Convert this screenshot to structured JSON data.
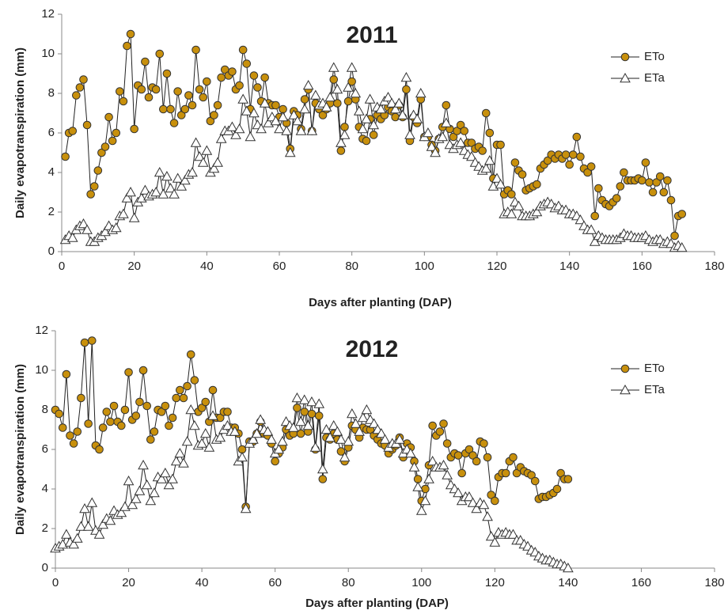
{
  "chart_data": [
    {
      "type": "line",
      "title": "2011",
      "xlabel": "Days after planting (DAP)",
      "ylabel": "Daily evapotranspiration  (mm)",
      "xlim": [
        0,
        180
      ],
      "ylim": [
        0,
        12
      ],
      "xticks": [
        0,
        20,
        40,
        60,
        80,
        100,
        120,
        140,
        160,
        180
      ],
      "yticks": [
        0,
        2,
        4,
        6,
        8,
        10,
        12
      ],
      "legend": "right",
      "x": [
        1,
        2,
        3,
        4,
        5,
        6,
        7,
        8,
        9,
        10,
        11,
        12,
        13,
        14,
        15,
        16,
        17,
        18,
        19,
        20,
        21,
        22,
        23,
        24,
        25,
        26,
        27,
        28,
        29,
        30,
        31,
        32,
        33,
        34,
        35,
        36,
        37,
        38,
        39,
        40,
        41,
        42,
        43,
        44,
        45,
        46,
        47,
        48,
        49,
        50,
        51,
        52,
        53,
        54,
        55,
        56,
        57,
        58,
        59,
        60,
        61,
        62,
        63,
        64,
        65,
        66,
        67,
        68,
        69,
        70,
        71,
        72,
        73,
        74,
        75,
        76,
        77,
        78,
        79,
        80,
        81,
        82,
        83,
        84,
        85,
        86,
        87,
        88,
        89,
        90,
        91,
        92,
        93,
        94,
        95,
        96,
        97,
        98,
        99,
        100,
        101,
        102,
        103,
        104,
        105,
        106,
        107,
        108,
        109,
        110,
        111,
        112,
        113,
        114,
        115,
        116,
        117,
        118,
        119,
        120,
        121,
        122,
        123,
        124,
        125,
        126,
        127,
        128,
        129,
        130,
        131,
        132,
        133,
        134,
        135,
        136,
        137,
        138,
        139,
        140,
        141,
        142,
        143,
        144,
        145,
        146,
        147,
        148,
        149,
        150,
        151,
        152,
        153,
        154,
        155,
        156,
        157,
        158,
        159,
        160,
        161,
        162,
        163,
        164,
        165,
        166,
        167,
        168,
        169,
        170,
        171
      ],
      "series": [
        {
          "name": "ETo",
          "color": "#c8900c",
          "marker": "circle",
          "values": [
            4.8,
            6.0,
            6.1,
            7.9,
            8.3,
            8.7,
            6.4,
            2.9,
            3.3,
            4.1,
            5.0,
            5.3,
            6.8,
            5.6,
            6.0,
            8.1,
            7.6,
            10.4,
            11.0,
            6.2,
            8.4,
            8.2,
            9.6,
            7.8,
            8.3,
            8.2,
            10.0,
            7.2,
            9.0,
            7.2,
            6.5,
            8.1,
            6.9,
            7.2,
            7.9,
            7.4,
            10.2,
            8.2,
            7.8,
            8.6,
            6.6,
            6.9,
            7.4,
            8.8,
            9.2,
            8.9,
            9.1,
            8.2,
            8.4,
            10.2,
            9.5,
            7.2,
            8.9,
            8.3,
            7.6,
            8.8,
            7.5,
            7.4,
            7.4,
            6.8,
            7.2,
            6.5,
            5.2,
            7.1,
            6.9,
            6.2,
            7.7,
            8.2,
            6.1,
            7.5,
            7.2,
            6.9,
            7.2,
            7.5,
            8.7,
            7.5,
            5.1,
            6.3,
            7.6,
            8.6,
            7.7,
            6.3,
            5.7,
            5.6,
            6.7,
            5.9,
            6.9,
            6.7,
            6.9,
            7.3,
            7.1,
            6.8,
            7.4,
            6.8,
            8.2,
            5.6,
            6.8,
            6.5,
            7.7,
            5.8,
            5.8,
            5.4,
            5.1,
            5.7,
            6.3,
            7.4,
            6.2,
            5.8,
            6.1,
            6.4,
            6.1,
            5.5,
            5.5,
            5.2,
            5.3,
            5.1,
            7.0,
            6.0,
            3.7,
            5.4,
            5.4,
            2.9,
            3.1,
            2.9,
            4.5,
            4.1,
            3.9,
            3.1,
            3.2,
            3.3,
            3.4,
            4.2,
            4.4,
            4.6,
            4.9,
            4.7,
            4.9,
            4.7,
            4.9,
            4.4,
            4.9,
            5.8,
            4.8,
            4.2,
            4.0,
            4.3,
            1.8,
            3.2,
            2.6,
            2.4,
            2.3,
            2.5,
            2.7,
            3.3,
            4.0,
            3.6,
            3.6,
            3.6,
            3.7,
            3.6,
            4.5,
            3.5,
            3.0,
            3.5,
            3.8,
            3.0,
            3.6,
            2.6,
            0.8,
            1.8,
            1.9
          ]
        },
        {
          "name": "ETa",
          "color": "#ffffff",
          "marker": "triangle",
          "values": [
            0.6,
            0.8,
            0.7,
            1.1,
            1.3,
            1.4,
            1.1,
            0.5,
            0.5,
            0.7,
            0.8,
            1.0,
            1.3,
            1.1,
            1.2,
            1.8,
            1.9,
            2.7,
            3.0,
            1.7,
            2.5,
            2.7,
            3.1,
            2.8,
            2.9,
            3.0,
            4.0,
            2.9,
            3.8,
            3.2,
            2.9,
            3.7,
            3.3,
            3.6,
            3.9,
            4.0,
            5.5,
            4.8,
            4.5,
            5.1,
            4.0,
            4.2,
            4.5,
            5.7,
            6.1,
            6.1,
            6.3,
            5.9,
            6.2,
            7.7,
            7.1,
            5.8,
            7.0,
            6.4,
            6.2,
            7.5,
            6.5,
            6.8,
            6.6,
            6.2,
            6.8,
            6.1,
            5.0,
            6.9,
            6.6,
            6.1,
            7.2,
            8.4,
            6.1,
            7.9,
            7.4,
            7.5,
            7.3,
            7.8,
            9.3,
            8.2,
            5.5,
            5.9,
            8.3,
            9.3,
            8.0,
            7.1,
            6.2,
            6.7,
            7.7,
            6.4,
            7.3,
            7.2,
            7.6,
            7.8,
            7.5,
            7.2,
            7.5,
            6.9,
            8.8,
            5.9,
            6.9,
            6.7,
            8.0,
            5.8,
            6.0,
            5.3,
            5.0,
            5.7,
            5.8,
            6.5,
            5.4,
            5.2,
            5.4,
            5.5,
            5.1,
            4.9,
            4.8,
            4.5,
            4.3,
            4.1,
            4.2,
            4.6,
            3.3,
            3.7,
            3.4,
            1.9,
            2.0,
            1.9,
            2.5,
            2.3,
            1.8,
            1.8,
            1.8,
            1.9,
            2.0,
            2.3,
            2.4,
            2.5,
            2.4,
            2.2,
            2.3,
            2.1,
            2.1,
            1.9,
            1.9,
            1.8,
            1.6,
            1.3,
            1.1,
            1.1,
            0.5,
            0.8,
            0.7,
            0.6,
            0.6,
            0.6,
            0.6,
            0.7,
            0.9,
            0.8,
            0.8,
            0.7,
            0.7,
            0.7,
            0.8,
            0.6,
            0.5,
            0.6,
            0.6,
            0.4,
            0.5,
            0.4,
            0.2,
            0.3,
            0.2
          ]
        }
      ]
    },
    {
      "type": "line",
      "title": "2012",
      "xlabel": "Days after planting (DAP)",
      "ylabel": "Daily evapotranspiration (mm)",
      "xlim": [
        0,
        180
      ],
      "ylim": [
        0,
        12
      ],
      "xticks": [
        0,
        20,
        40,
        60,
        80,
        100,
        120,
        140,
        160,
        180
      ],
      "yticks": [
        0,
        2,
        4,
        6,
        8,
        10,
        12
      ],
      "legend": "right",
      "x": [
        0,
        1,
        2,
        3,
        4,
        5,
        6,
        7,
        8,
        9,
        10,
        11,
        12,
        13,
        14,
        15,
        16,
        17,
        18,
        19,
        20,
        21,
        22,
        23,
        24,
        25,
        26,
        27,
        28,
        29,
        30,
        31,
        32,
        33,
        34,
        35,
        36,
        37,
        38,
        39,
        40,
        41,
        42,
        43,
        44,
        45,
        46,
        47,
        48,
        49,
        50,
        51,
        52,
        53,
        54,
        55,
        56,
        57,
        58,
        59,
        60,
        61,
        62,
        63,
        64,
        65,
        66,
        67,
        68,
        69,
        70,
        71,
        72,
        73,
        74,
        75,
        76,
        77,
        78,
        79,
        80,
        81,
        82,
        83,
        84,
        85,
        86,
        87,
        88,
        89,
        90,
        91,
        92,
        93,
        94,
        95,
        96,
        97,
        98,
        99,
        100,
        101,
        102,
        103,
        104,
        105,
        106,
        107,
        108,
        109,
        110,
        111,
        112,
        113,
        114,
        115,
        116,
        117,
        118,
        119,
        120,
        121,
        122,
        123,
        124,
        125,
        126,
        127,
        128,
        129,
        130,
        131,
        132,
        133,
        134,
        135,
        136,
        137,
        138,
        139,
        140
      ],
      "series": [
        {
          "name": "ETo",
          "color": "#c8900c",
          "marker": "circle",
          "values": [
            8.0,
            7.8,
            7.1,
            9.8,
            6.7,
            6.3,
            6.9,
            8.6,
            11.4,
            7.3,
            11.5,
            6.2,
            6.0,
            7.1,
            7.9,
            7.4,
            8.2,
            7.4,
            7.2,
            8.0,
            9.9,
            7.5,
            7.7,
            8.4,
            10.0,
            8.2,
            6.5,
            6.9,
            8.0,
            7.9,
            8.2,
            7.2,
            7.6,
            8.6,
            9.0,
            8.6,
            9.2,
            10.8,
            9.5,
            7.9,
            8.1,
            8.4,
            7.4,
            9.0,
            7.6,
            7.6,
            7.9,
            7.9,
            7.1,
            7.1,
            6.8,
            6.0,
            3.1,
            6.4,
            6.4,
            6.8,
            7.4,
            6.8,
            6.7,
            6.3,
            5.4,
            5.8,
            6.1,
            7.0,
            6.7,
            6.8,
            8.1,
            6.8,
            7.9,
            6.9,
            7.8,
            6.0,
            7.7,
            4.5,
            6.6,
            6.5,
            6.8,
            6.5,
            5.9,
            5.4,
            6.1,
            7.2,
            7.0,
            6.6,
            7.1,
            7.0,
            7.0,
            6.7,
            6.5,
            6.3,
            6.2,
            5.8,
            6.0,
            6.2,
            6.6,
            5.6,
            6.3,
            6.1,
            5.4,
            4.5,
            3.4,
            4.0,
            5.2,
            7.2,
            6.7,
            6.9,
            7.3,
            6.3,
            5.6,
            5.8,
            5.7,
            4.8,
            5.8,
            6.0,
            5.7,
            5.4,
            6.4,
            6.3,
            5.6,
            3.7,
            3.4,
            4.6,
            4.8,
            4.8,
            5.4,
            5.6,
            4.8,
            5.1,
            4.9,
            4.8,
            4.7,
            4.4,
            3.5,
            3.6,
            3.6,
            3.7,
            3.8,
            4.0,
            4.8,
            4.5,
            4.5
          ]
        },
        {
          "name": "ETa",
          "color": "#ffffff",
          "marker": "triangle",
          "values": [
            1.0,
            1.1,
            1.2,
            1.7,
            1.3,
            1.2,
            1.5,
            2.1,
            3.0,
            2.1,
            3.3,
            1.9,
            1.7,
            2.2,
            2.5,
            2.4,
            2.9,
            2.7,
            2.8,
            3.1,
            4.4,
            3.2,
            3.5,
            3.9,
            5.2,
            4.2,
            3.4,
            3.8,
            4.6,
            4.5,
            4.8,
            4.2,
            4.5,
            5.4,
            5.8,
            5.3,
            6.4,
            8.0,
            7.2,
            6.2,
            6.3,
            6.8,
            6.1,
            7.7,
            6.5,
            6.6,
            7.0,
            7.2,
            6.9,
            6.9,
            5.4,
            5.6,
            3.0,
            6.3,
            6.5,
            6.8,
            7.5,
            7.0,
            6.9,
            6.5,
            5.8,
            6.0,
            6.4,
            7.4,
            7.2,
            7.1,
            8.6,
            7.4,
            8.5,
            7.2,
            8.4,
            6.1,
            8.3,
            5.0,
            7.0,
            6.6,
            7.2,
            6.9,
            6.5,
            5.6,
            6.4,
            7.8,
            7.3,
            6.9,
            7.6,
            8.0,
            7.5,
            7.3,
            7.0,
            6.8,
            6.5,
            6.1,
            6.3,
            6.3,
            6.5,
            5.8,
            6.0,
            5.8,
            5.1,
            4.1,
            2.9,
            3.4,
            4.5,
            5.4,
            5.1,
            5.1,
            5.2,
            4.7,
            4.2,
            4.0,
            3.8,
            3.4,
            3.6,
            3.6,
            3.3,
            3.0,
            3.3,
            3.2,
            2.6,
            1.6,
            1.3,
            1.8,
            1.7,
            1.8,
            1.7,
            1.7,
            1.4,
            1.4,
            1.2,
            1.1,
            0.9,
            0.8,
            0.6,
            0.5,
            0.4,
            0.4,
            0.3,
            0.2,
            0.2,
            0.1,
            0.0
          ]
        }
      ]
    }
  ]
}
